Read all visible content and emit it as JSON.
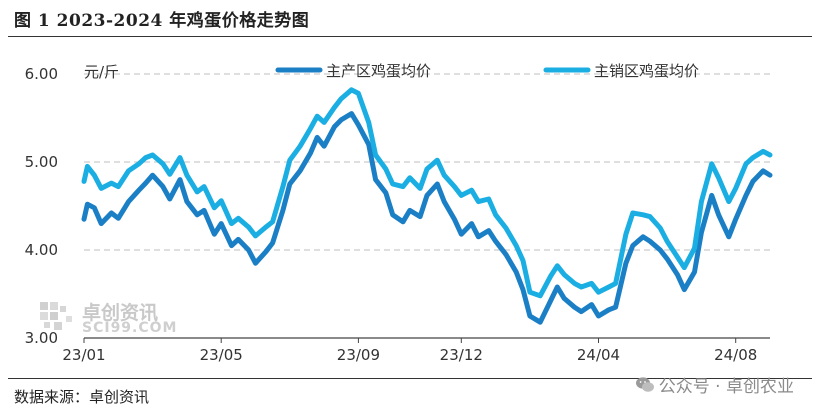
{
  "title": "图 1  2023-2024 年鸡蛋价格走势图",
  "source": "数据来源：卓创资讯",
  "watermark": {
    "name": "卓创资讯",
    "site": "SCI99.COM"
  },
  "wechat_label": "公众号 · 卓创农业",
  "colors": {
    "producing": "#1b7fc6",
    "selling": "#1aaee3",
    "grid": "#cccccc"
  },
  "chart_data": {
    "type": "line",
    "unit_label": "元/斤",
    "ylim": [
      3.0,
      6.0
    ],
    "yticks": [
      "3.00",
      "4.00",
      "5.00",
      "6.00"
    ],
    "ytick_values": [
      3,
      4,
      5,
      6
    ],
    "xlim": [
      0,
      20
    ],
    "xticks": [
      {
        "label": "23/01",
        "pos": 0
      },
      {
        "label": "23/05",
        "pos": 4
      },
      {
        "label": "23/09",
        "pos": 8
      },
      {
        "label": "23/12",
        "pos": 11
      },
      {
        "label": "24/04",
        "pos": 15
      },
      {
        "label": "24/08",
        "pos": 19
      }
    ],
    "grid": "horizontal-dashed",
    "legend_position": "top",
    "series": [
      {
        "name": "主产区鸡蛋均价",
        "x": [
          0,
          0.1,
          0.3,
          0.5,
          0.8,
          1.0,
          1.3,
          1.6,
          1.8,
          2.0,
          2.3,
          2.5,
          2.8,
          3.0,
          3.3,
          3.5,
          3.8,
          4.0,
          4.3,
          4.5,
          4.8,
          5.0,
          5.3,
          5.5,
          5.8,
          6.0,
          6.3,
          6.6,
          6.8,
          7.0,
          7.3,
          7.5,
          7.8,
          8.0,
          8.3,
          8.5,
          8.8,
          9.0,
          9.3,
          9.5,
          9.8,
          10.0,
          10.3,
          10.5,
          10.8,
          11.0,
          11.3,
          11.5,
          11.8,
          12.0,
          12.3,
          12.6,
          12.8,
          13.0,
          13.3,
          13.6,
          13.8,
          14.0,
          14.3,
          14.5,
          14.8,
          15.0,
          15.3,
          15.5,
          15.8,
          16.0,
          16.3,
          16.5,
          16.8,
          17.0,
          17.3,
          17.5,
          17.8,
          18.0,
          18.3,
          18.5,
          18.8,
          19.0,
          19.3,
          19.5,
          19.8,
          20.0
        ],
        "values": [
          4.35,
          4.52,
          4.48,
          4.3,
          4.42,
          4.36,
          4.55,
          4.68,
          4.76,
          4.85,
          4.72,
          4.58,
          4.8,
          4.55,
          4.4,
          4.45,
          4.18,
          4.3,
          4.05,
          4.12,
          4.0,
          3.85,
          3.98,
          4.08,
          4.45,
          4.75,
          4.9,
          5.1,
          5.28,
          5.18,
          5.4,
          5.48,
          5.55,
          5.42,
          5.2,
          4.8,
          4.65,
          4.4,
          4.32,
          4.45,
          4.38,
          4.62,
          4.75,
          4.55,
          4.35,
          4.18,
          4.3,
          4.15,
          4.22,
          4.1,
          3.95,
          3.75,
          3.55,
          3.25,
          3.18,
          3.42,
          3.58,
          3.45,
          3.35,
          3.3,
          3.38,
          3.25,
          3.32,
          3.35,
          3.85,
          4.05,
          4.15,
          4.1,
          4.0,
          3.9,
          3.72,
          3.55,
          3.75,
          4.2,
          4.62,
          4.4,
          4.15,
          4.35,
          4.62,
          4.78,
          4.9,
          4.85
        ]
      },
      {
        "name": "主销区鸡蛋均价",
        "x": [
          0,
          0.1,
          0.3,
          0.5,
          0.8,
          1.0,
          1.3,
          1.6,
          1.8,
          2.0,
          2.3,
          2.5,
          2.8,
          3.0,
          3.3,
          3.5,
          3.8,
          4.0,
          4.3,
          4.5,
          4.8,
          5.0,
          5.3,
          5.5,
          5.8,
          6.0,
          6.3,
          6.6,
          6.8,
          7.0,
          7.3,
          7.5,
          7.8,
          8.0,
          8.3,
          8.5,
          8.8,
          9.0,
          9.3,
          9.5,
          9.8,
          10.0,
          10.3,
          10.5,
          10.8,
          11.0,
          11.3,
          11.5,
          11.8,
          12.0,
          12.3,
          12.6,
          12.8,
          13.0,
          13.3,
          13.6,
          13.8,
          14.0,
          14.3,
          14.5,
          14.8,
          15.0,
          15.3,
          15.5,
          15.8,
          16.0,
          16.3,
          16.5,
          16.8,
          17.0,
          17.3,
          17.5,
          17.8,
          18.0,
          18.3,
          18.5,
          18.8,
          19.0,
          19.3,
          19.5,
          19.8,
          20.0
        ],
        "values": [
          4.78,
          4.95,
          4.85,
          4.7,
          4.76,
          4.72,
          4.9,
          4.98,
          5.05,
          5.08,
          4.98,
          4.86,
          5.05,
          4.85,
          4.66,
          4.72,
          4.48,
          4.56,
          4.3,
          4.36,
          4.26,
          4.16,
          4.26,
          4.32,
          4.72,
          5.02,
          5.18,
          5.38,
          5.52,
          5.45,
          5.62,
          5.72,
          5.82,
          5.78,
          5.45,
          5.08,
          4.92,
          4.75,
          4.72,
          4.82,
          4.7,
          4.92,
          5.02,
          4.85,
          4.72,
          4.62,
          4.68,
          4.55,
          4.58,
          4.4,
          4.25,
          4.05,
          3.88,
          3.52,
          3.48,
          3.7,
          3.82,
          3.72,
          3.62,
          3.58,
          3.62,
          3.52,
          3.58,
          3.62,
          4.18,
          4.42,
          4.4,
          4.38,
          4.25,
          4.1,
          3.92,
          3.8,
          4.02,
          4.55,
          4.98,
          4.82,
          4.55,
          4.7,
          4.98,
          5.05,
          5.12,
          5.08
        ]
      }
    ]
  }
}
